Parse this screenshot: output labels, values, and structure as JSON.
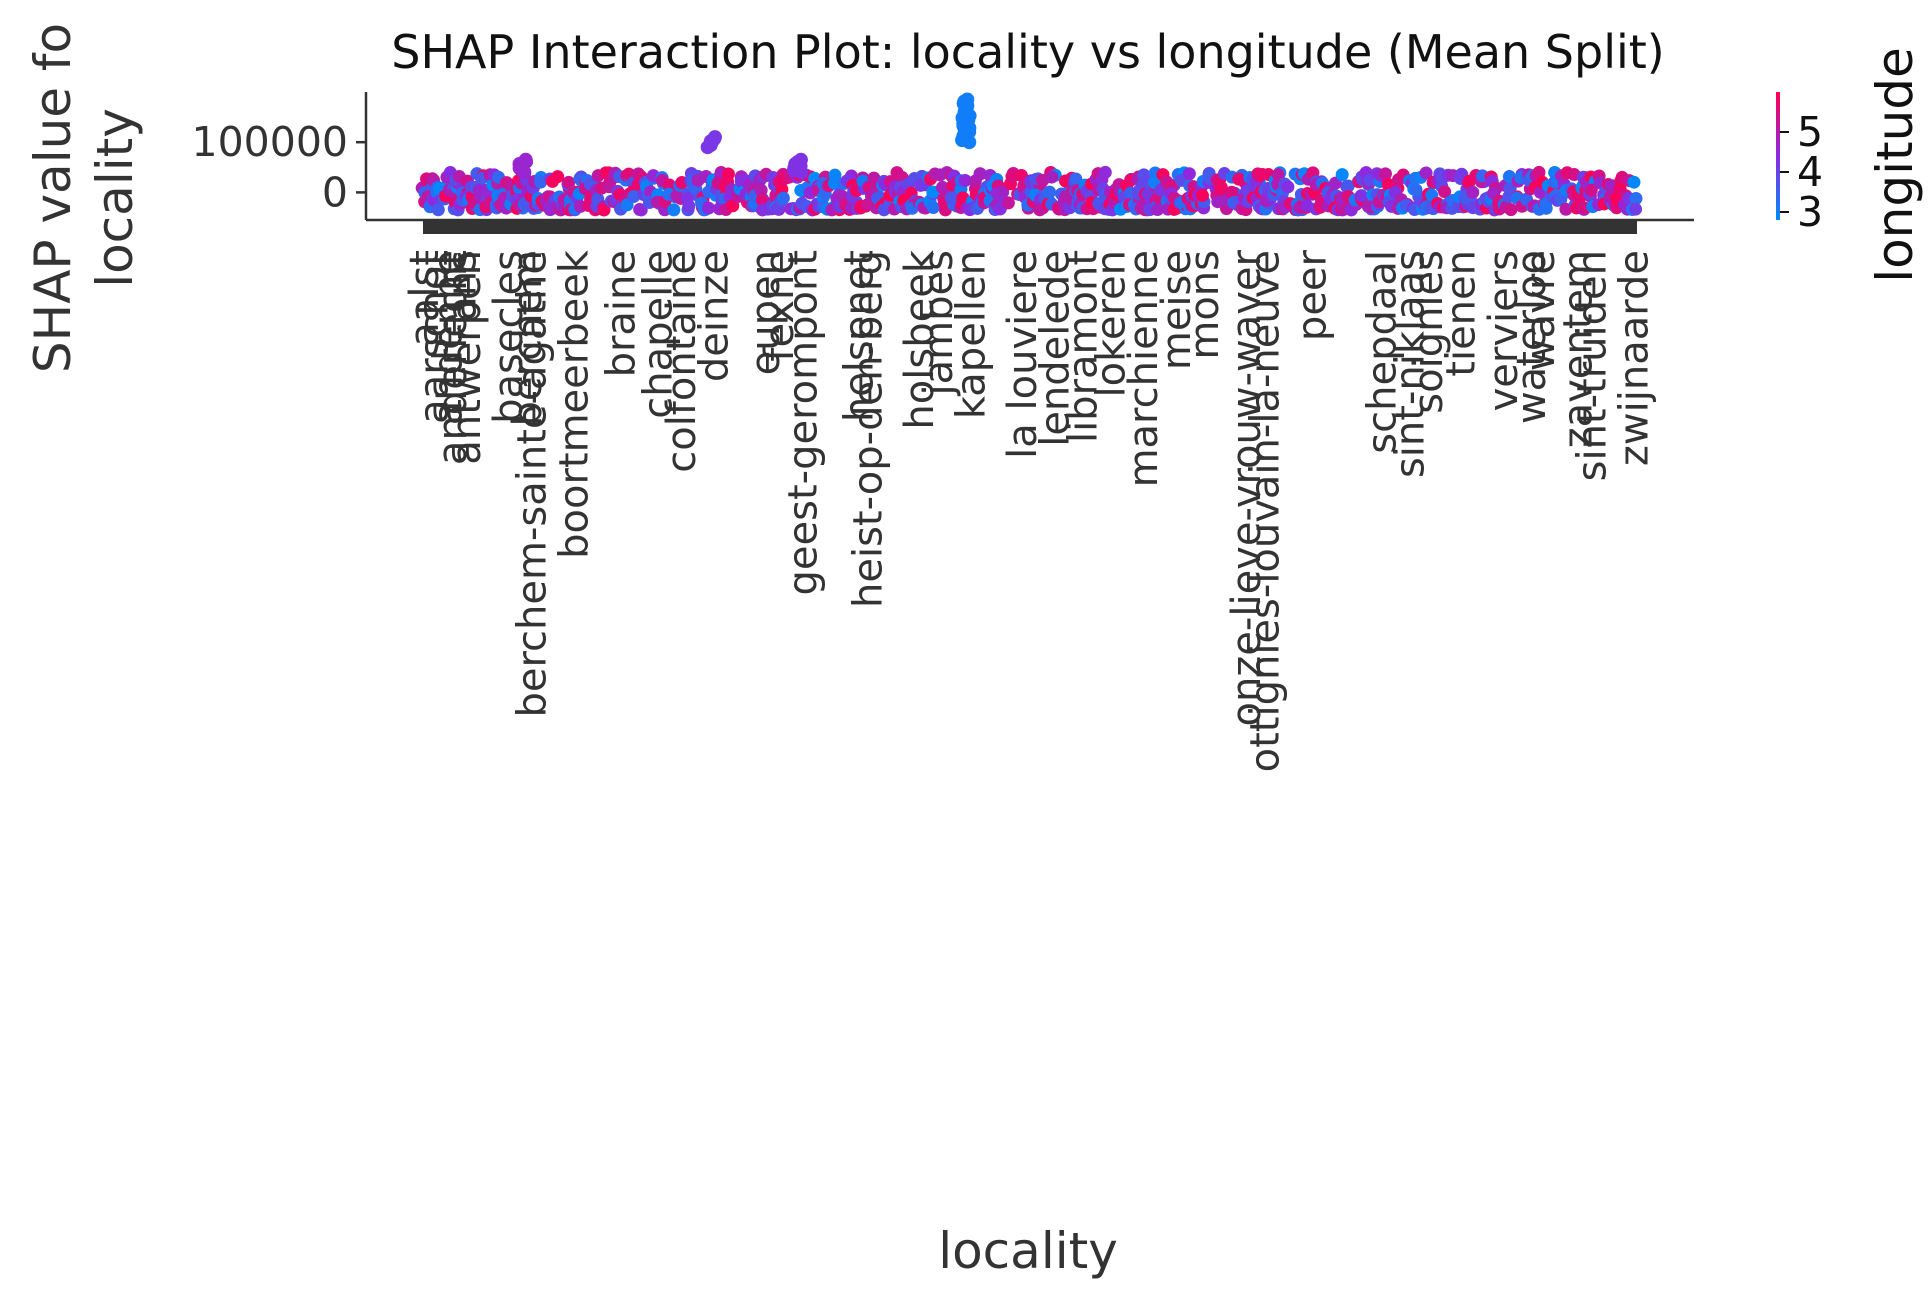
{
  "chart_data": {
    "type": "scatter",
    "title": "SHAP Interaction Plot: locality vs longitude (Mean Split)",
    "xlabel": "locality",
    "ylabel_line1": "SHAP value fo",
    "ylabel_line2": "locality",
    "y_ticks": [
      {
        "value": 0,
        "label": "0"
      },
      {
        "value": 100000,
        "label": "100000"
      }
    ],
    "ylim": [
      -55000,
      200000
    ],
    "colorbar": {
      "label": "longitude",
      "range": [
        2.8,
        6.0
      ],
      "ticks": [
        {
          "value": 3,
          "label": "3"
        },
        {
          "value": 4,
          "label": "4"
        },
        {
          "value": 5,
          "label": "5"
        }
      ],
      "colors": [
        "#008afb",
        "#8a2be2",
        "#ff0052"
      ]
    },
    "category_count": 520,
    "x_tick_labels_readable": [
      "aalst",
      "aarschot",
      "anderlecht",
      "antwerpen",
      "andenne",
      "ans",
      "basecles",
      "berchem",
      "berchem-sainte-agathe",
      "boortmeerbeek",
      "braine",
      "chapelle",
      "colfontaine",
      "deinze",
      "eupen",
      "fexhe",
      "geest-gerompont",
      "heist-op-den-berg",
      "helsenet",
      "holsbeek",
      "jambes",
      "kapellen",
      "la louviere",
      "lendelede",
      "libramont",
      "lokeren",
      "marchienne",
      "meise",
      "mons",
      "onze-lieve-vrouw-waver",
      "ottignies-louvain-la-neuve",
      "peer",
      "schepdaal",
      "sint-niklaas",
      "soignies",
      "tienen",
      "verviers",
      "waterloo",
      "wavre",
      "zaventem",
      "sint-truiden",
      "zwijnaarde"
    ],
    "x_tick_label_positions": [
      {
        "label": "aalst",
        "index": 0
      },
      {
        "label": "aarschot",
        "index": 4
      },
      {
        "label": "anderlecht",
        "index": 12
      },
      {
        "label": "antwerpen",
        "index": 18
      },
      {
        "label": "andenne",
        "index": 10
      },
      {
        "label": "ans",
        "index": 16
      },
      {
        "label": "basecles",
        "index": 36
      },
      {
        "label": "berchem",
        "index": 44
      },
      {
        "label": "berchem-sainte-agathe",
        "index": 46
      },
      {
        "label": "boortmeerbeek",
        "index": 64
      },
      {
        "label": "braine",
        "index": 84
      },
      {
        "label": "chapelle",
        "index": 100
      },
      {
        "label": "colfontaine",
        "index": 110
      },
      {
        "label": "deinze",
        "index": 124
      },
      {
        "label": "eupen",
        "index": 146
      },
      {
        "label": "fexhe",
        "index": 152
      },
      {
        "label": "geest-gerompont",
        "index": 162
      },
      {
        "label": "heist-op-den-berg",
        "index": 190
      },
      {
        "label": "helsenet",
        "index": 186
      },
      {
        "label": "holsbeek",
        "index": 212
      },
      {
        "label": "jambes",
        "index": 220
      },
      {
        "label": "kapellen",
        "index": 234
      },
      {
        "label": "la louviere",
        "index": 256
      },
      {
        "label": "lendelede",
        "index": 270
      },
      {
        "label": "libramont",
        "index": 282
      },
      {
        "label": "lokeren",
        "index": 294
      },
      {
        "label": "marchienne",
        "index": 308
      },
      {
        "label": "meise",
        "index": 322
      },
      {
        "label": "mons",
        "index": 334
      },
      {
        "label": "onze-lieve-vrouw-waver",
        "index": 352
      },
      {
        "label": "ottignies-louvain-la-neuve",
        "index": 360
      },
      {
        "label": "peer",
        "index": 380
      },
      {
        "label": "schepdaal",
        "index": 410
      },
      {
        "label": "sint-niklaas",
        "index": 422
      },
      {
        "label": "soignies",
        "index": 430
      },
      {
        "label": "tienen",
        "index": 444
      },
      {
        "label": "verviers",
        "index": 462
      },
      {
        "label": "waterloo",
        "index": 474
      },
      {
        "label": "wavre",
        "index": 478
      },
      {
        "label": "zaventem",
        "index": 494
      },
      {
        "label": "sint-truiden",
        "index": 500
      },
      {
        "label": "zwijnaarde",
        "index": 518
      }
    ],
    "notable_points": [
      {
        "category_index": 232,
        "value_min": 100000,
        "value_max": 185000,
        "color_value": 3.0,
        "note": "dense blue cluster"
      },
      {
        "category_index": 123,
        "value_min": 90000,
        "value_max": 110000,
        "color_value": 4.2
      },
      {
        "category_index": 160,
        "value_min": 40000,
        "value_max": 65000,
        "color_value": 4.3
      },
      {
        "category_index": 42,
        "value_min": 40000,
        "value_max": 65000,
        "color_value": 4.6
      }
    ],
    "point_cloud": {
      "typical_range": [
        -35000,
        40000
      ],
      "description": "one or more points per category index 0-519, colored by longitude"
    }
  }
}
